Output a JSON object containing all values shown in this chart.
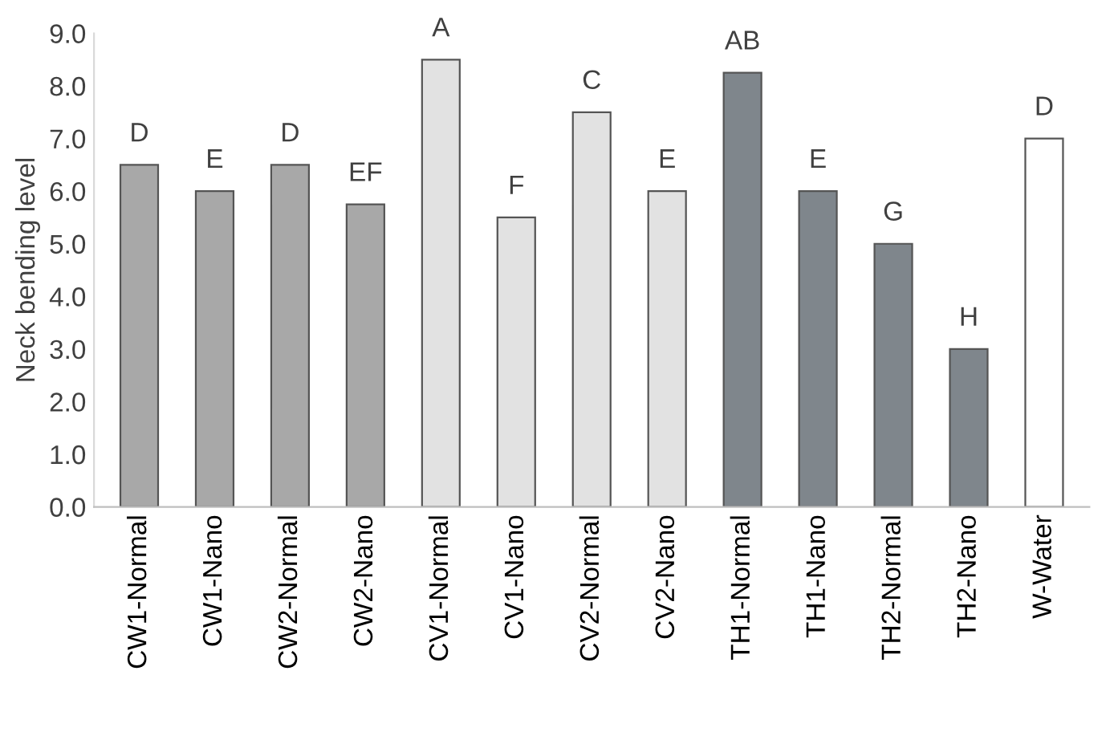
{
  "chart_data": {
    "type": "bar",
    "ylabel": "Neck bending level",
    "categories": [
      "CW1-Normal",
      "CW1-Nano",
      "CW2-Normal",
      "CW2-Nano",
      "CV1-Normal",
      "CV1-Nano",
      "CV2-Normal",
      "CV2-Nano",
      "TH1-Normal",
      "TH1-Nano",
      "TH2-Normal",
      "TH2-Nano",
      "W-Water"
    ],
    "values": [
      6.5,
      6.0,
      6.5,
      5.75,
      8.5,
      5.5,
      7.5,
      6.0,
      8.25,
      6.0,
      5.0,
      3.0,
      7.0
    ],
    "colors": [
      "#a8a8a8",
      "#a8a8a8",
      "#a8a8a8",
      "#a8a8a8",
      "#e2e2e2",
      "#e2e2e2",
      "#e2e2e2",
      "#e2e2e2",
      "#7f868c",
      "#7f868c",
      "#7f868c",
      "#7f868c",
      "#ffffff"
    ],
    "ylim": [
      0,
      9
    ],
    "yticks": [
      {
        "value": 0,
        "label": "0.0"
      },
      {
        "value": 1,
        "label": "1.0"
      },
      {
        "value": 2,
        "label": "2.0"
      },
      {
        "value": 3,
        "label": "3.0"
      },
      {
        "value": 4,
        "label": "4.0"
      },
      {
        "value": 5,
        "label": "5.0"
      },
      {
        "value": 6,
        "label": "6.0"
      },
      {
        "value": 7,
        "label": "7.0"
      },
      {
        "value": 8,
        "label": "8.0"
      },
      {
        "value": 9,
        "label": "9.0"
      }
    ],
    "grid": false,
    "annotations": [
      {
        "text": "D",
        "x": "CW1-Normal",
        "y": 6.5
      },
      {
        "text": "E",
        "x": "CW1-Nano",
        "y": 6.0
      },
      {
        "text": "D",
        "x": "CW2-Normal",
        "y": 6.5
      },
      {
        "text": "EF",
        "x": "CW2-Nano",
        "y": 5.75
      },
      {
        "text": "A",
        "x": "CV1-Normal",
        "y": 8.5
      },
      {
        "text": "F",
        "x": "CV1-Nano",
        "y": 5.5
      },
      {
        "text": "C",
        "x": "CV2-Normal",
        "y": 7.5
      },
      {
        "text": "E",
        "x": "CV2-Nano",
        "y": 6.0
      },
      {
        "text": "AB",
        "x": "TH1-Normal",
        "y": 8.25
      },
      {
        "text": "E",
        "x": "TH1-Nano",
        "y": 6.0
      },
      {
        "text": "G",
        "x": "TH2-Normal",
        "y": 5.0
      },
      {
        "text": "H",
        "x": "TH2-Nano",
        "y": 3.0
      },
      {
        "text": "D",
        "x": "W-Water",
        "y": 7.0
      }
    ]
  }
}
